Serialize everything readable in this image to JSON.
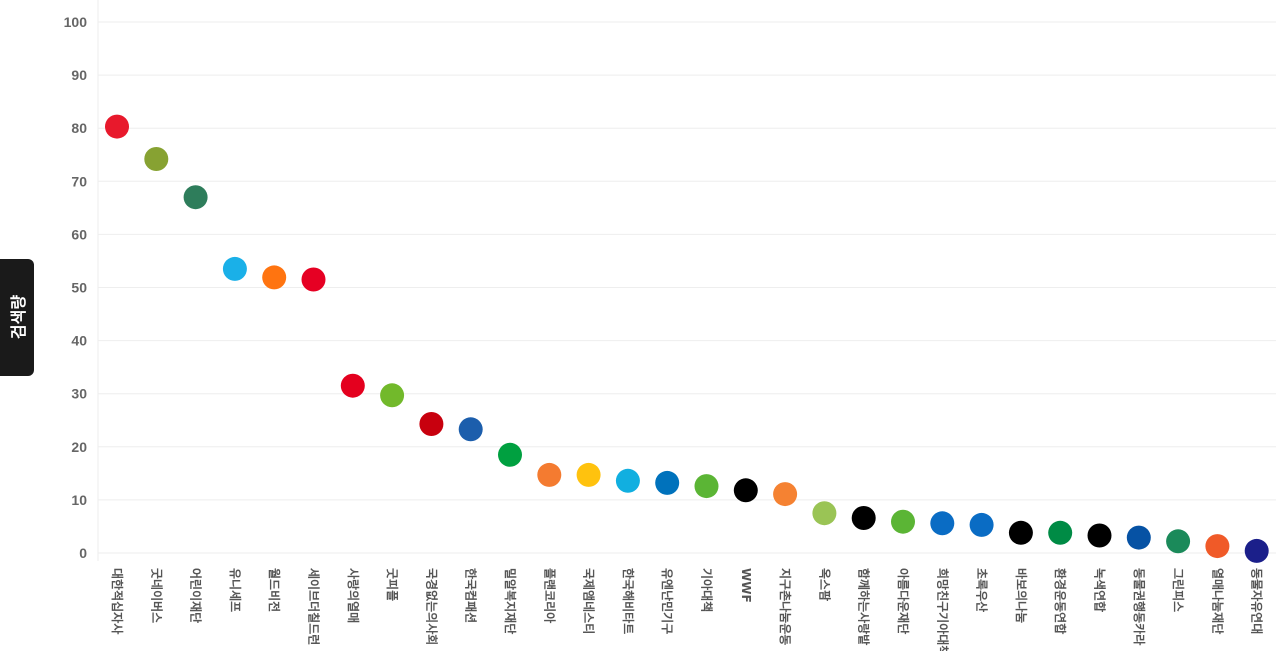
{
  "chart_data": {
    "type": "scatter",
    "ylabel": "검색량",
    "xlabel": "",
    "ylim": [
      0,
      100
    ],
    "yticks": [
      0,
      10,
      20,
      30,
      40,
      50,
      60,
      70,
      80,
      90,
      100
    ],
    "grid": true,
    "points": [
      {
        "category": "대한적십자사",
        "value": 80.3,
        "color": "#e8192c"
      },
      {
        "category": "굿네이버스",
        "value": 74.2,
        "color": "#87a232"
      },
      {
        "category": "어린이재단",
        "value": 67.0,
        "color": "#2e7d5b"
      },
      {
        "category": "유니세프",
        "value": 53.5,
        "color": "#1ab0e8"
      },
      {
        "category": "월드비전",
        "value": 51.9,
        "color": "#ff7410"
      },
      {
        "category": "세이브더칠드런",
        "value": 51.5,
        "color": "#e60023"
      },
      {
        "category": "사랑의열매",
        "value": 31.5,
        "color": "#e4001e"
      },
      {
        "category": "굿피플",
        "value": 29.7,
        "color": "#72b92b"
      },
      {
        "category": "국경없는의사회",
        "value": 24.3,
        "color": "#c8000e"
      },
      {
        "category": "한국컴패션",
        "value": 23.3,
        "color": "#1c5eac"
      },
      {
        "category": "밀알복지재단",
        "value": 18.5,
        "color": "#00a040"
      },
      {
        "category": "플랜코리아",
        "value": 14.7,
        "color": "#f47b30"
      },
      {
        "category": "국제앰네스티",
        "value": 14.7,
        "color": "#ffc20e"
      },
      {
        "category": "한국해비타트",
        "value": 13.6,
        "color": "#11afe0"
      },
      {
        "category": "유엔난민기구",
        "value": 13.2,
        "color": "#0072bc"
      },
      {
        "category": "기아대책",
        "value": 12.6,
        "color": "#5bb535"
      },
      {
        "category": "WWF",
        "value": 11.8,
        "color": "#000000"
      },
      {
        "category": "지구촌나눔운동",
        "value": 11.1,
        "color": "#f58232"
      },
      {
        "category": "옥스팜",
        "value": 7.5,
        "color": "#9ac455"
      },
      {
        "category": "함께하는사랑밭",
        "value": 6.6,
        "color": "#000000"
      },
      {
        "category": "아름다운재단",
        "value": 5.9,
        "color": "#5bb535"
      },
      {
        "category": "희망친구기아대책",
        "value": 5.6,
        "color": "#0a6cc4"
      },
      {
        "category": "초록우산",
        "value": 5.3,
        "color": "#0a6cc4"
      },
      {
        "category": "바보의나눔",
        "value": 3.8,
        "color": "#000000"
      },
      {
        "category": "환경운동연합",
        "value": 3.8,
        "color": "#008b45"
      },
      {
        "category": "녹색연합",
        "value": 3.3,
        "color": "#000000"
      },
      {
        "category": "동물권행동카라",
        "value": 2.9,
        "color": "#0652a4"
      },
      {
        "category": "그린피스",
        "value": 2.2,
        "color": "#1b8a5a"
      },
      {
        "category": "열매나눔재단",
        "value": 1.3,
        "color": "#f05a28"
      },
      {
        "category": "동물자유연대",
        "value": 0.4,
        "color": "#1b1f8a"
      }
    ]
  }
}
